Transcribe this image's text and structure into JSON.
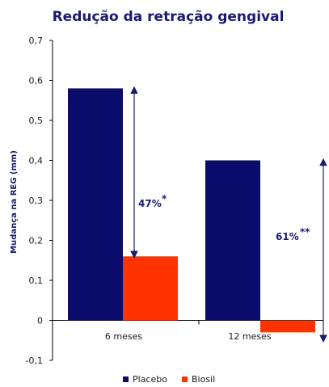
{
  "chart_data": {
    "type": "bar",
    "title": "Redução da retração gengival",
    "ylabel": "Mudança na REG (mm)",
    "xlabel": "",
    "ylim": [
      -0.1,
      0.7
    ],
    "yticks": [
      "0,7",
      "0,6",
      "0,5",
      "0,4",
      "0,3",
      "0,2",
      "0,1",
      "0",
      "-0,1"
    ],
    "ytick_values": [
      0.7,
      0.6,
      0.5,
      0.4,
      0.3,
      0.2,
      0.1,
      0,
      -0.1
    ],
    "categories": [
      "6 meses",
      "12 meses"
    ],
    "series": [
      {
        "name": "Placebo",
        "color": "#0b0b6b",
        "values": [
          0.58,
          0.4
        ]
      },
      {
        "name": "Biosil",
        "color": "#ff3300",
        "values": [
          0.16,
          -0.03
        ]
      }
    ],
    "annotations": [
      {
        "text": "47%",
        "mark": "*",
        "category": "6 meses"
      },
      {
        "text": "61%",
        "mark": "**",
        "category": "12 meses"
      }
    ],
    "legend_position": "bottom",
    "grid": false
  }
}
